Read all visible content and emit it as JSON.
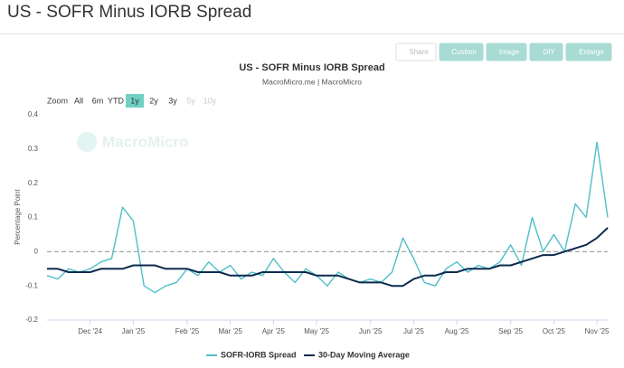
{
  "header": {
    "title": "US - SOFR Minus IORB Spread"
  },
  "toolbar": [
    "Share",
    "Custom",
    "Image",
    "DIY",
    "Enlarge"
  ],
  "zoom": {
    "label": "Zoom",
    "options": [
      "All",
      "6m",
      "YTD",
      "1y",
      "2y",
      "3y",
      "5y",
      "10y"
    ],
    "selected": "1y",
    "disabled": [
      "5y",
      "10y"
    ]
  },
  "watermark": "MacroMicro",
  "chart_data": {
    "type": "line",
    "title": "US - SOFR Minus IORB Spread",
    "subtitle": "MacroMicro.me | MacroMicro",
    "y_label": "Percentage Point",
    "categories": [
      null,
      null,
      null,
      null,
      "Dec '24",
      null,
      null,
      null,
      "Jan '25",
      null,
      null,
      null,
      null,
      "Feb '25",
      null,
      null,
      null,
      "Mar '25",
      null,
      null,
      null,
      "Apr '25",
      null,
      null,
      null,
      "May '25",
      null,
      null,
      null,
      null,
      "Jun '25",
      null,
      null,
      null,
      "Jul '25",
      null,
      null,
      null,
      "Aug '25",
      null,
      null,
      null,
      null,
      "Sep '25",
      null,
      null,
      null,
      "Oct '25",
      null,
      null,
      null,
      "Nov '25",
      null
    ],
    "series": [
      {
        "name": "SOFR-IORB Spread",
        "color": "#4dbfc8",
        "width": 1.4,
        "values": [
          -0.07,
          -0.08,
          -0.05,
          -0.06,
          -0.05,
          -0.03,
          -0.02,
          0.13,
          0.09,
          -0.1,
          -0.12,
          -0.1,
          -0.09,
          -0.05,
          -0.07,
          -0.03,
          -0.06,
          -0.04,
          -0.08,
          -0.06,
          -0.07,
          -0.02,
          -0.06,
          -0.09,
          -0.05,
          -0.07,
          -0.1,
          -0.06,
          -0.08,
          -0.09,
          -0.08,
          -0.09,
          -0.06,
          0.04,
          -0.02,
          -0.09,
          -0.1,
          -0.05,
          -0.03,
          -0.06,
          -0.04,
          -0.05,
          -0.03,
          0.02,
          -0.04,
          0.1,
          0.0,
          0.05,
          0.0,
          0.14,
          0.1,
          0.32,
          0.1
        ]
      },
      {
        "name": "30-Day Moving Average",
        "color": "#0d2b4e",
        "width": 2,
        "values": [
          -0.05,
          -0.05,
          -0.06,
          -0.06,
          -0.06,
          -0.05,
          -0.05,
          -0.05,
          -0.04,
          -0.04,
          -0.04,
          -0.05,
          -0.05,
          -0.05,
          -0.06,
          -0.06,
          -0.06,
          -0.07,
          -0.07,
          -0.07,
          -0.06,
          -0.06,
          -0.06,
          -0.06,
          -0.06,
          -0.07,
          -0.07,
          -0.07,
          -0.08,
          -0.09,
          -0.09,
          -0.09,
          -0.1,
          -0.1,
          -0.08,
          -0.07,
          -0.07,
          -0.06,
          -0.06,
          -0.05,
          -0.05,
          -0.05,
          -0.04,
          -0.04,
          -0.03,
          -0.02,
          -0.01,
          -0.01,
          0.0,
          0.01,
          0.02,
          0.04,
          0.07
        ]
      }
    ],
    "ylim": [
      -0.2,
      0.4
    ],
    "yticks": [
      -0.2,
      -0.1,
      {
        "value": 0,
        "label": "0"
      },
      0.1,
      0.2,
      0.3,
      0.4
    ],
    "grid": false,
    "zero_line": true,
    "legend": "bottom"
  }
}
